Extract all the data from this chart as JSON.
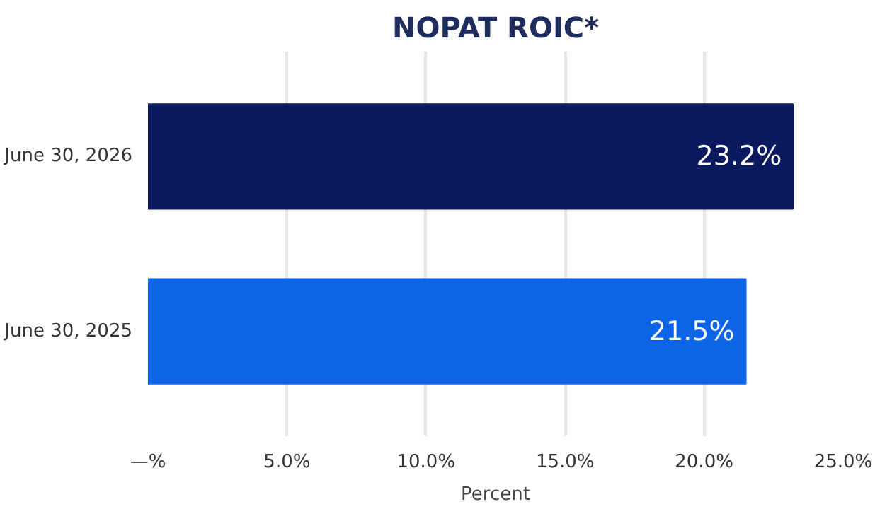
{
  "chart_data": {
    "type": "bar",
    "orientation": "horizontal",
    "title": "NOPAT ROIC*",
    "xlabel": "Percent",
    "categories": [
      "June 30, 2026",
      "June 30, 2025"
    ],
    "values": [
      23.2,
      21.5
    ],
    "colors": [
      "#0b1a5e",
      "#0c64e6"
    ],
    "value_labels": [
      "23.2%",
      "21.5%"
    ],
    "xlim": [
      0,
      25
    ],
    "xticks": [
      {
        "value": 0,
        "label": "—%"
      },
      {
        "value": 5,
        "label": "5.0%"
      },
      {
        "value": 10,
        "label": "10.0%"
      },
      {
        "value": 15,
        "label": "15.0%"
      },
      {
        "value": 20,
        "label": "20.0%"
      },
      {
        "value": 25,
        "label": "25.0%"
      }
    ],
    "grid": "x"
  }
}
